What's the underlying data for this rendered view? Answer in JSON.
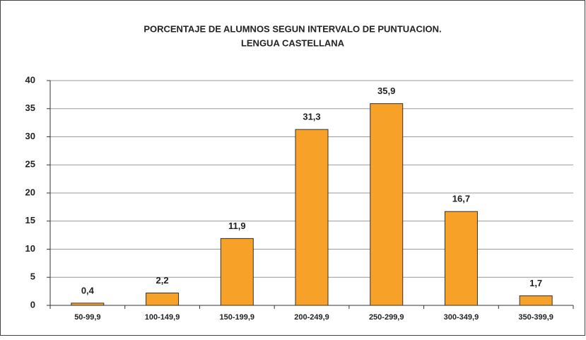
{
  "chart_data": {
    "type": "bar",
    "title": "PORCENTAJE DE ALUMNOS SEGUN INTERVALO DE PUNTUACION.",
    "subtitle": "LENGUA CASTELLANA",
    "categories": [
      "50-99,9",
      "100-149,9",
      "150-199,9",
      "200-249,9",
      "250-299,9",
      "300-349,9",
      "350-399,9"
    ],
    "values": [
      0.4,
      2.2,
      11.9,
      31.3,
      35.9,
      16.7,
      1.7
    ],
    "value_labels": [
      "0,4",
      "2,2",
      "11,9",
      "31,3",
      "35,9",
      "16,7",
      "1,7"
    ],
    "color": "#f7a128",
    "ylim": [
      0,
      40
    ],
    "yticks": [
      0,
      5,
      10,
      15,
      20,
      25,
      30,
      35,
      40
    ],
    "grid": true
  }
}
